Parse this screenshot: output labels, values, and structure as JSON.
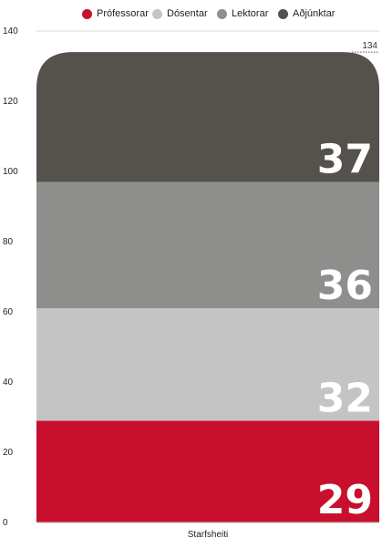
{
  "chart_data": {
    "type": "bar",
    "stacked": true,
    "categories": [
      "Starfsheiti"
    ],
    "series": [
      {
        "name": "Prófessorar",
        "values": [
          29
        ],
        "color": "#c8102e"
      },
      {
        "name": "Dósentar",
        "values": [
          32
        ],
        "color": "#c4c4c4"
      },
      {
        "name": "Lektorar",
        "values": [
          36
        ],
        "color": "#8e8e8c"
      },
      {
        "name": "Aðjúnktar",
        "values": [
          37
        ],
        "color": "#55524e"
      }
    ],
    "total": 134,
    "ylim": [
      0,
      140
    ],
    "yticks": [
      0,
      20,
      40,
      60,
      80,
      100,
      120,
      140
    ],
    "legend": "top",
    "grid": false,
    "title": "",
    "xlabel": "",
    "ylabel": ""
  }
}
